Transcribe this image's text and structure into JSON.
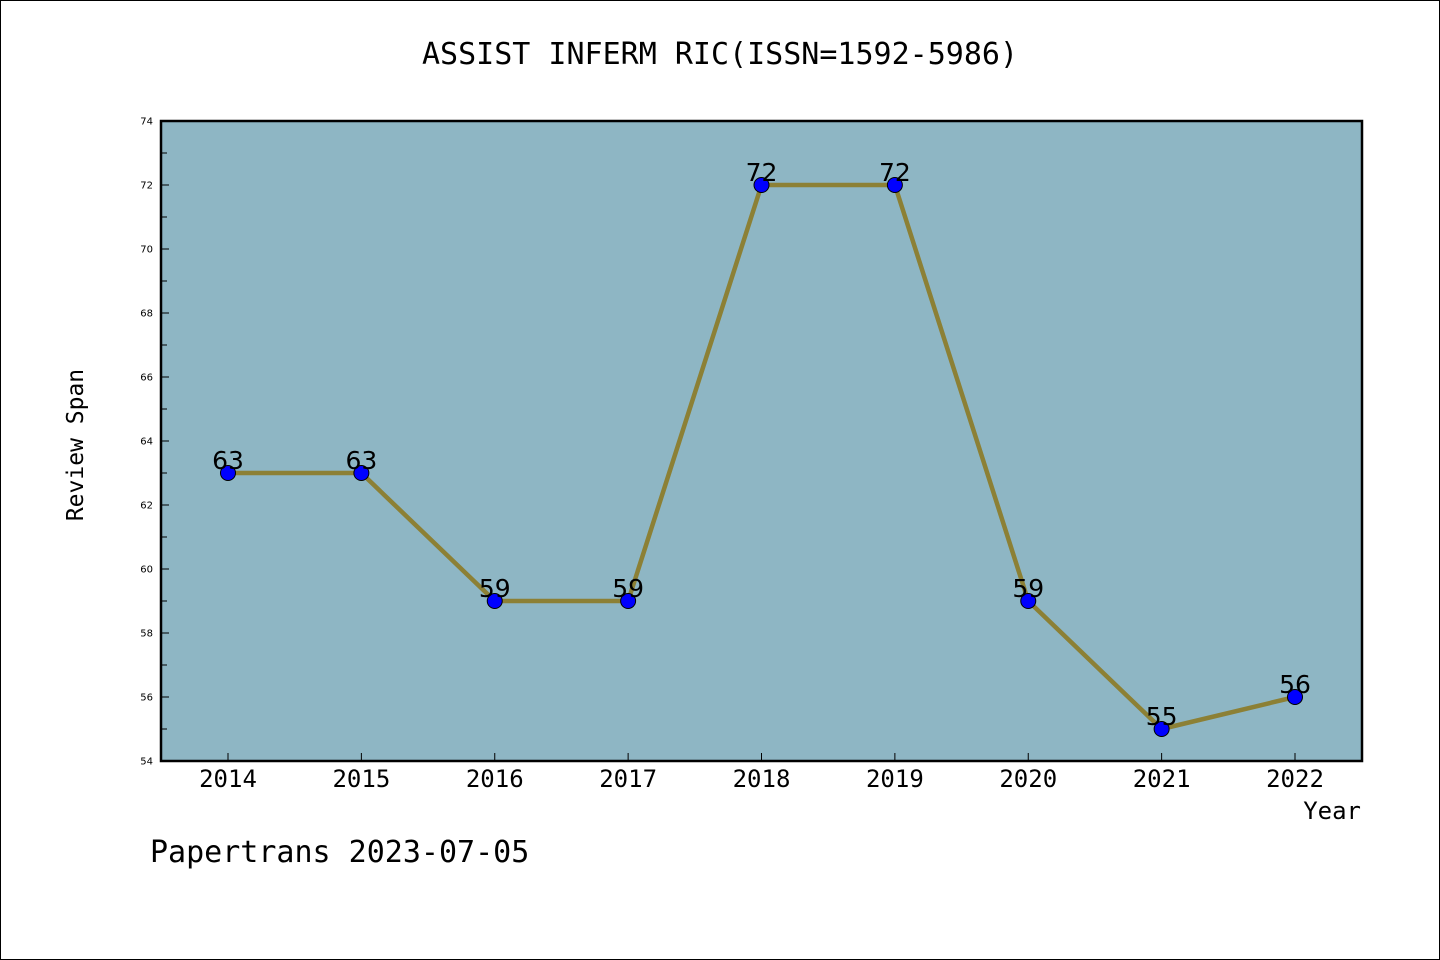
{
  "chart_data": {
    "type": "line",
    "title": "ASSIST INFERM RIC(ISSN=1592-5986)",
    "xlabel": "Year",
    "ylabel": "Review Span",
    "categories": [
      "2014",
      "2015",
      "2016",
      "2017",
      "2018",
      "2019",
      "2020",
      "2021",
      "2022"
    ],
    "series": [
      {
        "values": [
          63,
          63,
          59,
          59,
          72,
          72,
          59,
          55,
          56
        ]
      }
    ],
    "ylim": [
      54,
      74
    ],
    "yticks": [
      54,
      56,
      58,
      60,
      62,
      64,
      66,
      68,
      70,
      72,
      74
    ],
    "data_labels": true,
    "grid": false,
    "colors": {
      "plot_background": "#8eb6c4",
      "line": "#8c8035",
      "marker": "#0000ff"
    }
  },
  "footer": "Papertrans 2023-07-05"
}
